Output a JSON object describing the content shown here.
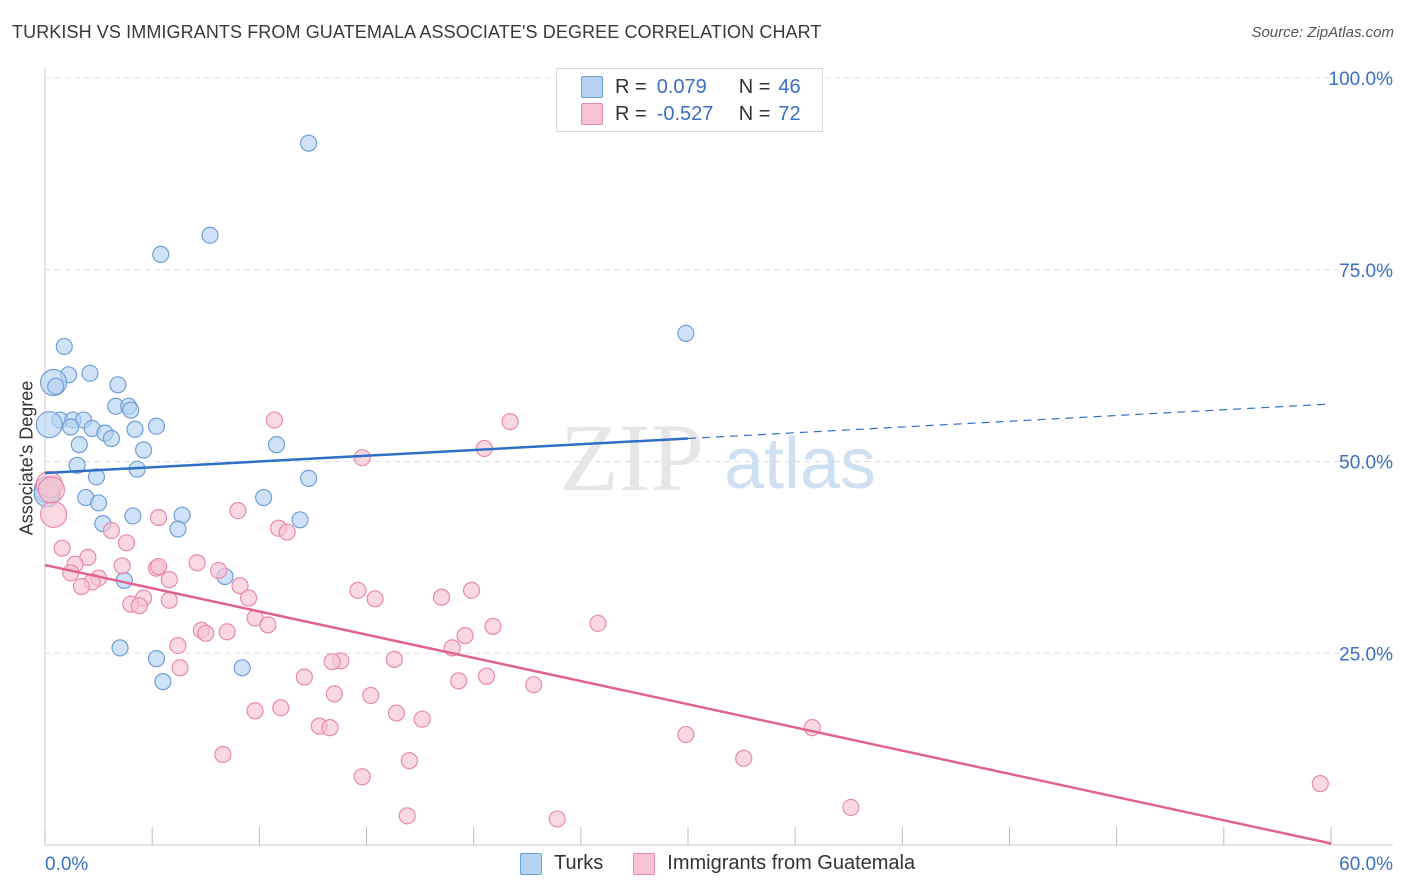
{
  "title": "TURKISH VS IMMIGRANTS FROM GUATEMALA ASSOCIATE'S DEGREE CORRELATION CHART",
  "source": "Source: ZipAtlas.com",
  "watermark": {
    "zip": "ZIP",
    "atlas": "atlas"
  },
  "legend": {
    "rows": [
      {
        "r_label": "R =",
        "r_value": "0.079",
        "n_label": "N =",
        "n_value": "46"
      },
      {
        "r_label": "R =",
        "r_value": "-0.527",
        "n_label": "N =",
        "n_value": "72"
      }
    ]
  },
  "bottom_legend": [
    "Turks",
    "Immigrants from Guatemala"
  ],
  "colors": {
    "turks_fill": "#b6d2f2",
    "turks_stroke": "#6f9fd8",
    "turks_line": "#2f6fc6",
    "guat_fill": "#f7c3d3",
    "guat_stroke": "#e98aab",
    "guat_line": "#e0628f",
    "tick_label": "#3b6fc4",
    "grid": "#dddddd"
  },
  "chart_data": {
    "type": "scatter",
    "title": "TURKISH VS IMMIGRANTS FROM GUATEMALA ASSOCIATE'S DEGREE CORRELATION CHART",
    "xlabel": "",
    "ylabel": "Associate's Degree",
    "xlim": [
      0,
      60
    ],
    "ylim": [
      0,
      100
    ],
    "x_tick_labels": [
      "0.0%",
      "60.0%"
    ],
    "y_tick_labels": [
      "25.0%",
      "50.0%",
      "75.0%",
      "100.0%"
    ],
    "y_ticks": [
      25,
      50,
      75,
      100
    ],
    "grid": true,
    "legend_placement": "top-center",
    "series": [
      {
        "name": "Turks",
        "r": 0.079,
        "n": 46,
        "trend": {
          "x0": 0,
          "y0": 48.5,
          "x1": 60,
          "y1": 57.5,
          "solid_until": 30
        },
        "points": [
          [
            12.3,
            91.5
          ],
          [
            7.7,
            79.5
          ],
          [
            5.4,
            77.0
          ],
          [
            29.9,
            66.7
          ],
          [
            0.9,
            65.0
          ],
          [
            1.1,
            61.3
          ],
          [
            2.1,
            61.5
          ],
          [
            0.4,
            60.3
          ],
          [
            0.5,
            59.8
          ],
          [
            3.4,
            60.0
          ],
          [
            3.3,
            57.2
          ],
          [
            3.9,
            57.2
          ],
          [
            4.0,
            56.7
          ],
          [
            0.7,
            55.4
          ],
          [
            1.3,
            55.4
          ],
          [
            1.8,
            55.4
          ],
          [
            0.2,
            54.8
          ],
          [
            1.2,
            54.5
          ],
          [
            2.2,
            54.3
          ],
          [
            2.8,
            53.7
          ],
          [
            3.1,
            53.0
          ],
          [
            4.2,
            54.2
          ],
          [
            5.2,
            54.6
          ],
          [
            1.6,
            52.2
          ],
          [
            4.6,
            51.5
          ],
          [
            10.8,
            52.2
          ],
          [
            1.5,
            49.5
          ],
          [
            4.3,
            49.0
          ],
          [
            2.4,
            48.0
          ],
          [
            12.3,
            47.8
          ],
          [
            0.1,
            46.3
          ],
          [
            1.9,
            45.3
          ],
          [
            2.5,
            44.6
          ],
          [
            10.2,
            45.3
          ],
          [
            4.1,
            42.9
          ],
          [
            6.4,
            43.0
          ],
          [
            2.7,
            41.9
          ],
          [
            6.2,
            41.2
          ],
          [
            11.9,
            42.4
          ],
          [
            3.7,
            34.5
          ],
          [
            8.4,
            35.0
          ],
          [
            3.5,
            25.7
          ],
          [
            5.2,
            24.3
          ],
          [
            9.2,
            23.1
          ],
          [
            5.5,
            21.3
          ],
          [
            0.1,
            45.8
          ]
        ]
      },
      {
        "name": "Immigrants from Guatemala",
        "r": -0.527,
        "n": 72,
        "trend": {
          "x0": 0,
          "y0": 36.5,
          "x1": 60,
          "y1": 0.2
        },
        "points": [
          [
            10.7,
            55.4
          ],
          [
            21.7,
            55.2
          ],
          [
            14.8,
            50.5
          ],
          [
            20.5,
            51.7
          ],
          [
            0.2,
            47.0
          ],
          [
            0.4,
            43.1
          ],
          [
            9.0,
            43.6
          ],
          [
            5.3,
            42.7
          ],
          [
            10.9,
            41.3
          ],
          [
            11.3,
            40.8
          ],
          [
            3.1,
            41.0
          ],
          [
            3.8,
            39.4
          ],
          [
            0.8,
            38.7
          ],
          [
            2.0,
            37.5
          ],
          [
            1.4,
            36.6
          ],
          [
            3.6,
            36.4
          ],
          [
            5.2,
            36.1
          ],
          [
            7.1,
            36.8
          ],
          [
            8.1,
            35.8
          ],
          [
            1.2,
            35.5
          ],
          [
            2.5,
            34.8
          ],
          [
            2.2,
            34.3
          ],
          [
            5.8,
            34.6
          ],
          [
            1.7,
            33.7
          ],
          [
            9.1,
            33.8
          ],
          [
            14.6,
            33.2
          ],
          [
            19.9,
            33.2
          ],
          [
            4.6,
            32.2
          ],
          [
            5.8,
            31.9
          ],
          [
            9.5,
            32.2
          ],
          [
            15.4,
            32.1
          ],
          [
            18.5,
            32.3
          ],
          [
            4.0,
            31.4
          ],
          [
            4.4,
            31.2
          ],
          [
            9.8,
            29.6
          ],
          [
            10.4,
            28.7
          ],
          [
            7.3,
            28.0
          ],
          [
            8.5,
            27.8
          ],
          [
            7.5,
            27.6
          ],
          [
            19.6,
            27.3
          ],
          [
            20.9,
            28.5
          ],
          [
            25.8,
            28.9
          ],
          [
            6.2,
            26.0
          ],
          [
            19.0,
            25.7
          ],
          [
            13.8,
            24.0
          ],
          [
            13.4,
            23.9
          ],
          [
            16.3,
            24.2
          ],
          [
            6.3,
            23.1
          ],
          [
            12.1,
            21.9
          ],
          [
            19.3,
            21.4
          ],
          [
            20.6,
            22.0
          ],
          [
            22.8,
            20.9
          ],
          [
            13.5,
            19.7
          ],
          [
            15.2,
            19.5
          ],
          [
            11.0,
            17.9
          ],
          [
            9.8,
            17.5
          ],
          [
            16.4,
            17.2
          ],
          [
            17.6,
            16.4
          ],
          [
            12.8,
            15.5
          ],
          [
            13.3,
            15.3
          ],
          [
            35.8,
            15.3
          ],
          [
            29.9,
            14.4
          ],
          [
            8.3,
            11.8
          ],
          [
            32.6,
            11.3
          ],
          [
            17.0,
            11.0
          ],
          [
            14.8,
            8.9
          ],
          [
            59.5,
            8.0
          ],
          [
            37.6,
            4.9
          ],
          [
            16.9,
            3.8
          ],
          [
            23.9,
            3.4
          ],
          [
            0.3,
            46.3
          ],
          [
            5.3,
            36.3
          ]
        ]
      }
    ]
  }
}
